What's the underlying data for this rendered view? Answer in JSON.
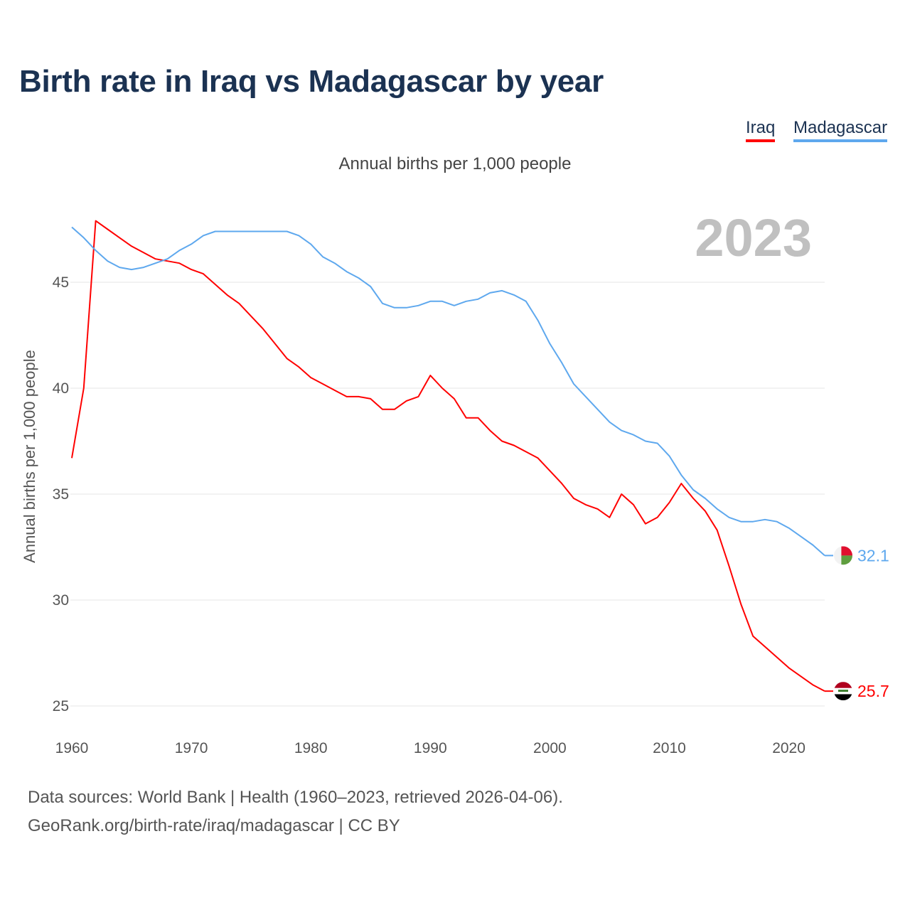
{
  "header": {
    "title": "Birth rate in Iraq vs Madagascar by year",
    "subtitle": "Annual births per 1,000 people",
    "year_badge": "2023"
  },
  "legend": [
    {
      "label": "Iraq",
      "color": "#ff0000"
    },
    {
      "label": "Madagascar",
      "color": "#5ea8ee"
    }
  ],
  "footer": {
    "line1": "Data sources: World Bank | Health (1960–2023, retrieved 2026-04-06).",
    "line2": "GeoRank.org/birth-rate/iraq/madagascar | CC BY"
  },
  "chart_data": {
    "type": "line",
    "title": "Birth rate in Iraq vs Madagascar by year",
    "xlabel": "",
    "ylabel": "Annual births per 1,000 people",
    "xlim": [
      1960,
      2023
    ],
    "ylim": [
      24,
      48.5
    ],
    "xticks": [
      1960,
      1970,
      1980,
      1990,
      2000,
      2010,
      2020
    ],
    "yticks": [
      25,
      30,
      35,
      40,
      45
    ],
    "grid": true,
    "legend_position": "top-right",
    "x": [
      1960,
      1961,
      1962,
      1963,
      1964,
      1965,
      1966,
      1967,
      1968,
      1969,
      1970,
      1971,
      1972,
      1973,
      1974,
      1975,
      1976,
      1977,
      1978,
      1979,
      1980,
      1981,
      1982,
      1983,
      1984,
      1985,
      1986,
      1987,
      1988,
      1989,
      1990,
      1991,
      1992,
      1993,
      1994,
      1995,
      1996,
      1997,
      1998,
      1999,
      2000,
      2001,
      2002,
      2003,
      2004,
      2005,
      2006,
      2007,
      2008,
      2009,
      2010,
      2011,
      2012,
      2013,
      2014,
      2015,
      2016,
      2017,
      2018,
      2019,
      2020,
      2021,
      2022,
      2023
    ],
    "series": [
      {
        "name": "Iraq",
        "color": "#ff0000",
        "end_label": "25.7",
        "flag": "iraq-flag",
        "values": [
          36.7,
          40.0,
          47.9,
          47.5,
          47.1,
          46.7,
          46.4,
          46.1,
          46.0,
          45.9,
          45.6,
          45.4,
          44.9,
          44.4,
          44.0,
          43.4,
          42.8,
          42.1,
          41.4,
          41.0,
          40.5,
          40.2,
          39.9,
          39.6,
          39.6,
          39.5,
          39.0,
          39.0,
          39.4,
          39.6,
          40.6,
          40.0,
          39.5,
          38.6,
          38.6,
          38.0,
          37.5,
          37.3,
          37.0,
          36.7,
          36.1,
          35.5,
          34.8,
          34.5,
          34.3,
          33.9,
          35.0,
          34.5,
          33.6,
          33.9,
          34.6,
          35.5,
          34.8,
          34.2,
          33.3,
          31.6,
          29.8,
          28.3,
          27.8,
          27.3,
          26.8,
          26.4,
          26.0,
          25.7
        ]
      },
      {
        "name": "Madagascar",
        "color": "#5ea8ee",
        "end_label": "32.1",
        "flag": "madagascar-flag",
        "values": [
          47.6,
          47.1,
          46.5,
          46.0,
          45.7,
          45.6,
          45.7,
          45.9,
          46.1,
          46.5,
          46.8,
          47.2,
          47.4,
          47.4,
          47.4,
          47.4,
          47.4,
          47.4,
          47.4,
          47.2,
          46.8,
          46.2,
          45.9,
          45.5,
          45.2,
          44.8,
          44.0,
          43.8,
          43.8,
          43.9,
          44.1,
          44.1,
          43.9,
          44.1,
          44.2,
          44.5,
          44.6,
          44.4,
          44.1,
          43.2,
          42.1,
          41.2,
          40.2,
          39.6,
          39.0,
          38.4,
          38.0,
          37.8,
          37.5,
          37.4,
          36.8,
          35.9,
          35.2,
          34.8,
          34.3,
          33.9,
          33.7,
          33.7,
          33.8,
          33.7,
          33.4,
          33.0,
          32.6,
          32.1
        ]
      }
    ]
  }
}
